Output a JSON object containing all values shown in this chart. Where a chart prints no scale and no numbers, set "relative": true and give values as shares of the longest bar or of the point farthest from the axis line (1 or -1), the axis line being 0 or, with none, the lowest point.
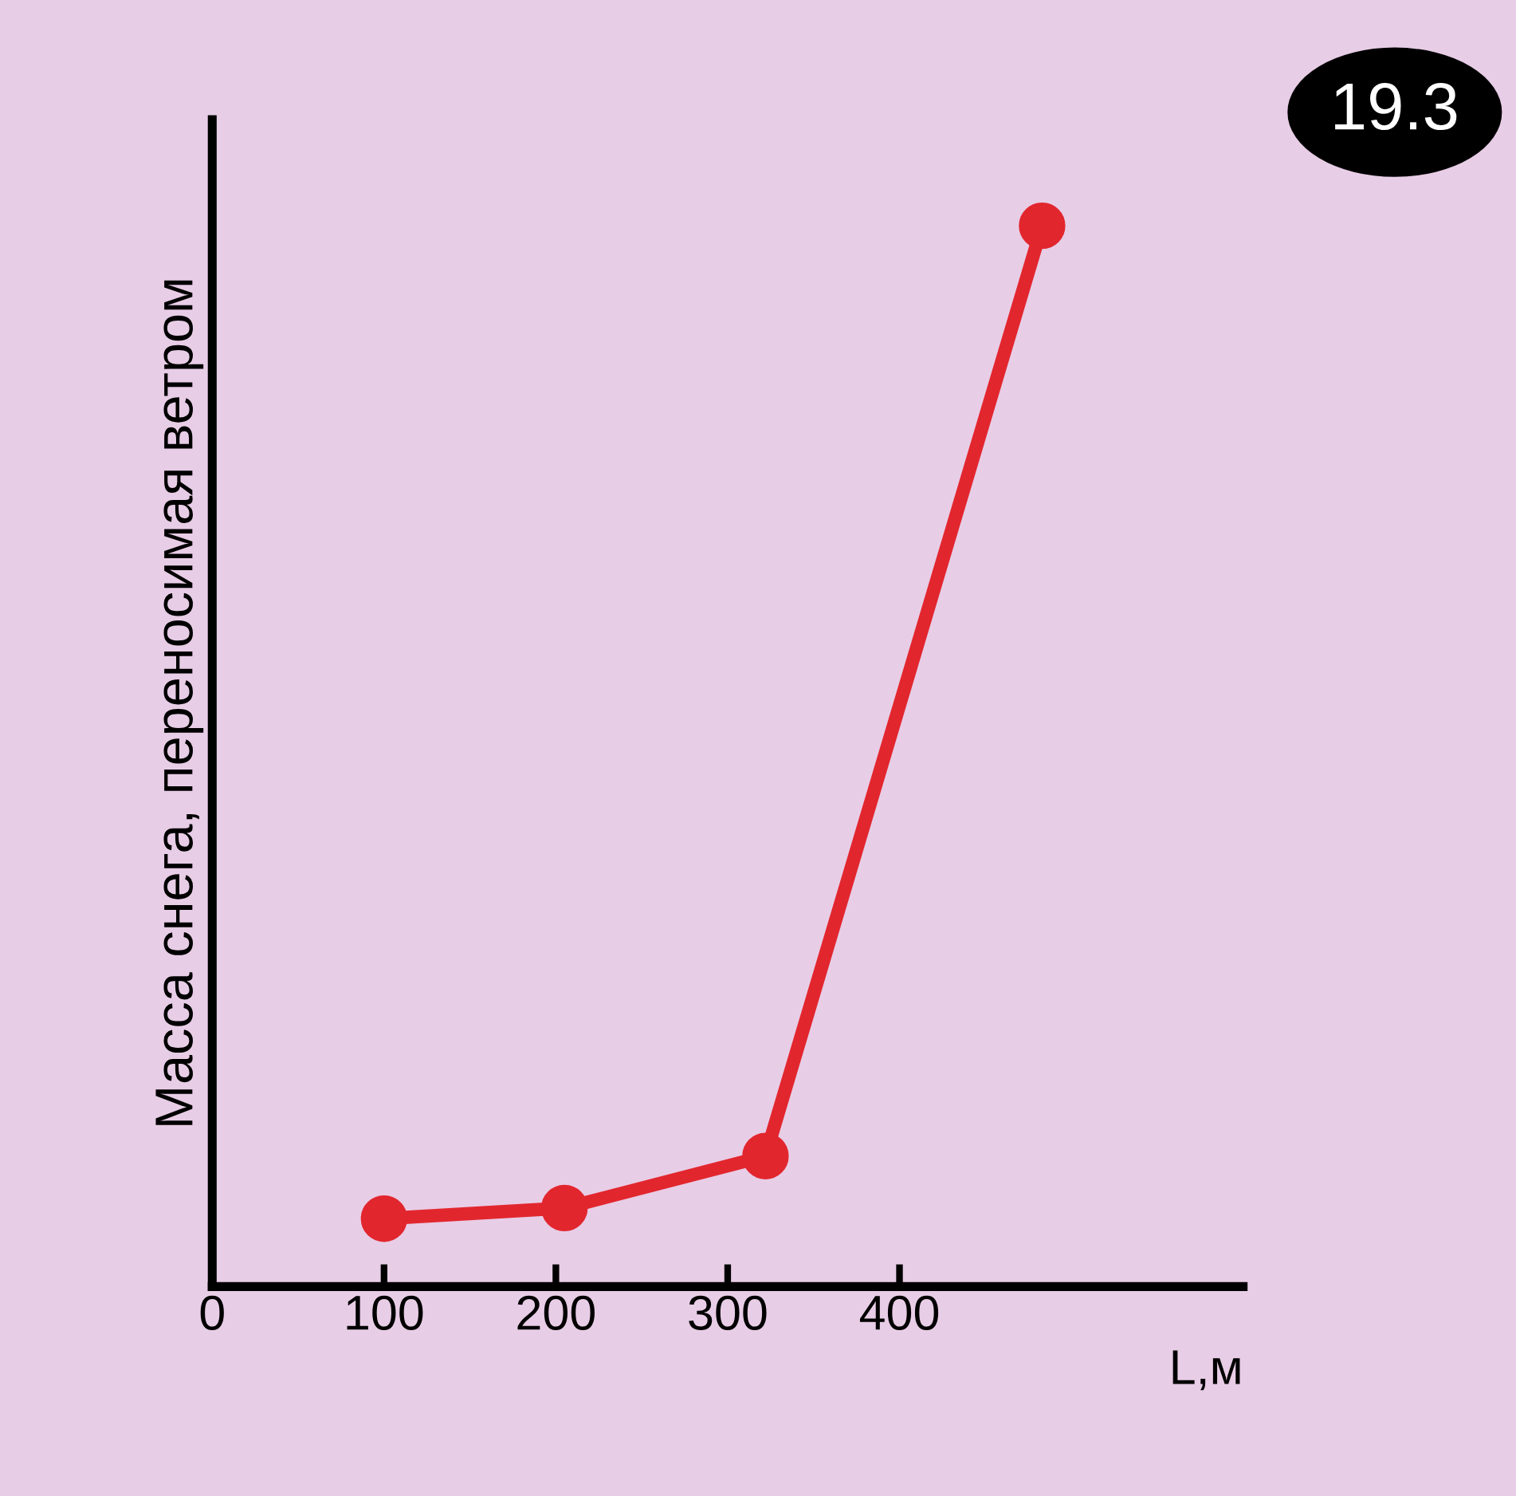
{
  "chart_data": {
    "type": "line",
    "ylabel": "Масса снега, переносимая ветром",
    "xlabel": "L,м",
    "annotations": [
      "19.3"
    ],
    "x": [
      100,
      205,
      322,
      483
    ],
    "series": [
      {
        "color": "#e2262e",
        "values": [
          0.064,
          0.074,
          0.123,
          1
        ]
      }
    ],
    "relative": true,
    "xlim": [
      0,
      600
    ],
    "xticks": [
      0,
      100,
      200,
      300,
      400
    ],
    "marker": "circle",
    "line_style": "solid",
    "grid": false,
    "legend": false
  }
}
